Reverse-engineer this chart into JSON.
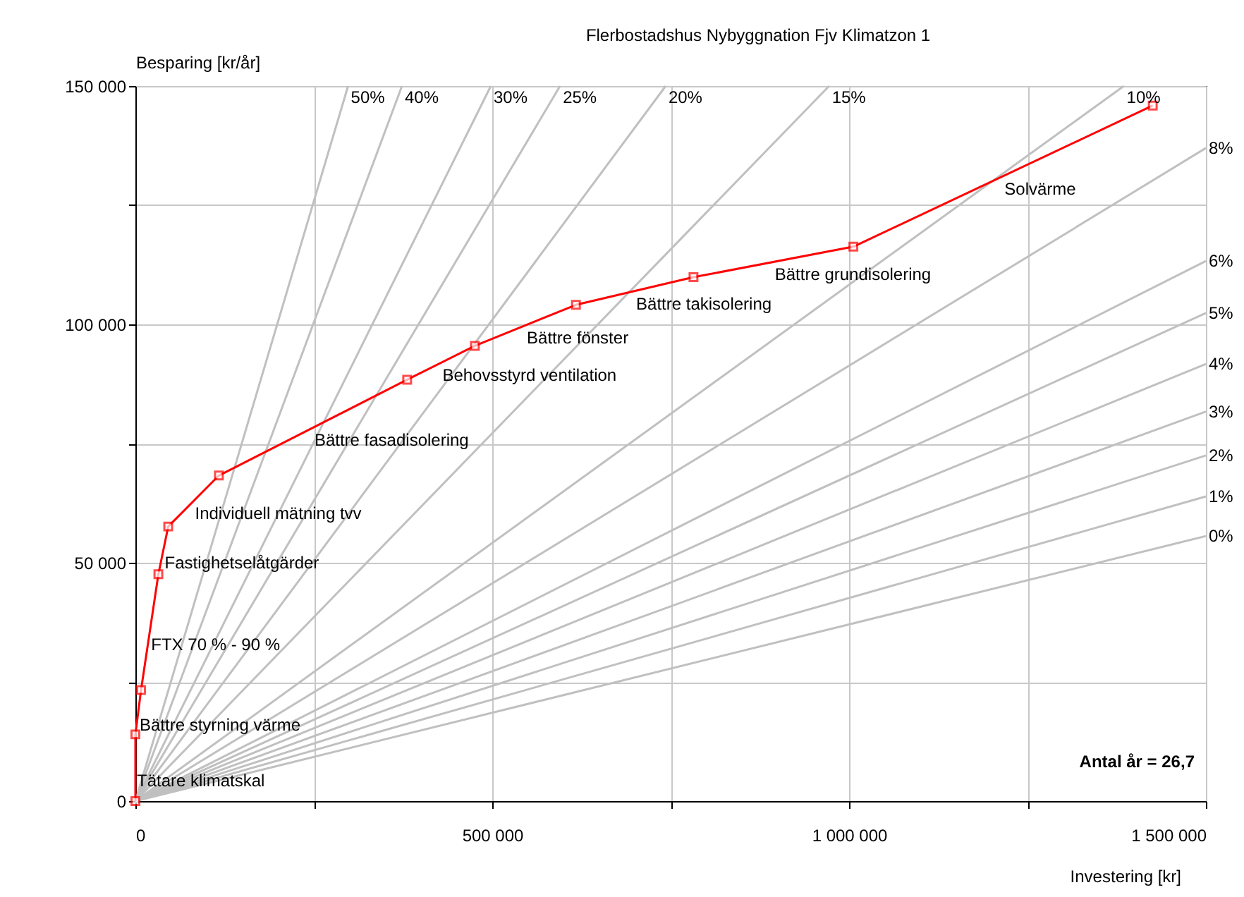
{
  "chart_data": {
    "type": "line",
    "title": "Flerbostadshus Nybyggnation Fjv Klimatzon 1",
    "xlabel": "Investering [kr]",
    "ylabel": "Besparing [kr/år]",
    "xlim": [
      0,
      1500000
    ],
    "ylim": [
      0,
      150000
    ],
    "xticks": [
      0,
      {
        "value": 250000,
        "label": null
      },
      {
        "value": 500000,
        "label": "500 000"
      },
      {
        "value": 750000,
        "label": null
      },
      {
        "value": 1000000,
        "label": "1 000 000"
      },
      {
        "value": 1250000,
        "label": null
      },
      {
        "value": 1500000,
        "label": "1 500 000"
      }
    ],
    "yticks": [
      0,
      {
        "value": 25000,
        "label": null
      },
      {
        "value": 50000,
        "label": "50 000"
      },
      {
        "value": 75000,
        "label": null
      },
      {
        "value": 100000,
        "label": "100 000"
      },
      {
        "value": 125000,
        "label": null
      },
      {
        "value": 150000,
        "label": "150 000"
      }
    ],
    "grid": true,
    "line_style": "solid",
    "series": [
      {
        "name": "50%",
        "color": "#c0c0c0",
        "x": [
          0,
          298000
        ],
        "values": [
          0,
          150000
        ]
      },
      {
        "name": "40%",
        "color": "#c0c0c0",
        "x": [
          0,
          373500
        ],
        "values": [
          0,
          150000
        ]
      },
      {
        "name": "30%",
        "color": "#c0c0c0",
        "x": [
          0,
          498000
        ],
        "values": [
          0,
          150000
        ]
      },
      {
        "name": "25%",
        "color": "#c0c0c0",
        "x": [
          0,
          595000
        ],
        "values": [
          0,
          150000
        ]
      },
      {
        "name": "20%",
        "color": "#c0c0c0",
        "x": [
          0,
          743000
        ],
        "values": [
          0,
          150000
        ]
      },
      {
        "name": "15%",
        "color": "#c0c0c0",
        "x": [
          0,
          972000
        ],
        "values": [
          0,
          150000
        ]
      },
      {
        "name": "10%",
        "color": "#c0c0c0",
        "x": [
          0,
          1385000
        ],
        "values": [
          0,
          150000
        ]
      },
      {
        "name": "8%",
        "color": "#c0c0c0",
        "x": [
          0,
          1500000
        ],
        "values": [
          0,
          137000
        ]
      },
      {
        "name": "6%",
        "color": "#c0c0c0",
        "x": [
          0,
          1500000
        ],
        "values": [
          0,
          113300
        ]
      },
      {
        "name": "5%",
        "color": "#c0c0c0",
        "x": [
          0,
          1500000
        ],
        "values": [
          0,
          102400
        ]
      },
      {
        "name": "4%",
        "color": "#c0c0c0",
        "x": [
          0,
          1500000
        ],
        "values": [
          0,
          91700
        ]
      },
      {
        "name": "3%",
        "color": "#c0c0c0",
        "x": [
          0,
          1500000
        ],
        "values": [
          0,
          81700
        ]
      },
      {
        "name": "2%",
        "color": "#c0c0c0",
        "x": [
          0,
          1500000
        ],
        "values": [
          0,
          72500
        ]
      },
      {
        "name": "1%",
        "color": "#c0c0c0",
        "x": [
          0,
          1500000
        ],
        "values": [
          0,
          63900
        ]
      },
      {
        "name": "0%",
        "color": "#c0c0c0",
        "x": [
          0,
          1500000
        ],
        "values": [
          0,
          55600
        ]
      },
      {
        "color": "#ff0000",
        "marker": "square",
        "x": [
          0,
          0,
          7900,
          32200,
          46000,
          117000,
          380800,
          475700,
          617300,
          782000,
          1006000,
          1425500
        ],
        "values": [
          0,
          14000,
          23300,
          47600,
          57600,
          68300,
          88400,
          95500,
          104100,
          109900,
          116300,
          145900
        ]
      }
    ],
    "annotations": [
      {
        "text": "Tätare klimatskal",
        "x": 0,
        "y": 7000
      },
      {
        "text": "Bättre styrning värme",
        "x": 3950,
        "y": 18650
      },
      {
        "text": "FTX 70 % - 90 %",
        "x": 20050,
        "y": 35450
      },
      {
        "text": "Fastighetselåtgärder",
        "x": 39100,
        "y": 52600
      },
      {
        "text": "Individuell mätning tvv",
        "x": 81500,
        "y": 62950
      },
      {
        "text": "Bättre fasadisolering",
        "x": 248900,
        "y": 78350
      },
      {
        "text": "Behovsstyrd ventilation",
        "x": 428250,
        "y": 91950
      },
      {
        "text": "Bättre fönster",
        "x": 546500,
        "y": 99800
      },
      {
        "text": "Bättre takisolering",
        "x": 699650,
        "y": 107000
      },
      {
        "text": "Bättre grundisolering",
        "x": 894000,
        "y": 113100
      },
      {
        "text": "Solvärme",
        "x": 1215750,
        "y": 131100
      },
      "Antal år = 26,7"
    ]
  }
}
